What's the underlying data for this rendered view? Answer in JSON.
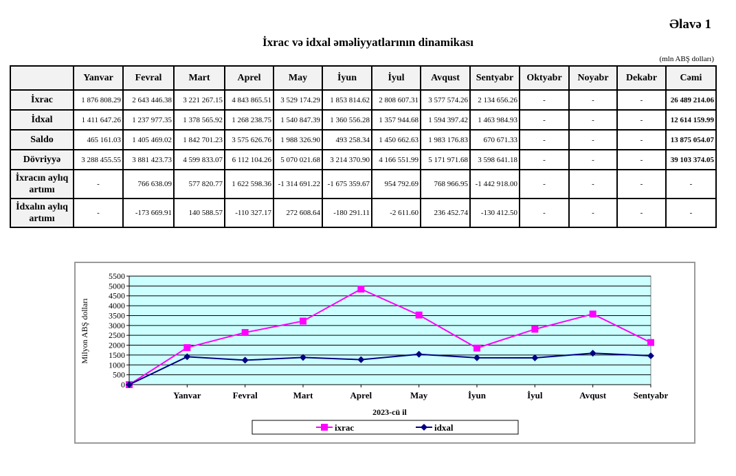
{
  "header": {
    "appendix": "Əlavə 1",
    "title": "İxrac və idxal əməliyyatlarının dinamikası",
    "unit": "(mln ABŞ dolları)"
  },
  "table": {
    "columns": [
      "",
      "Yanvar",
      "Fevral",
      "Mart",
      "Aprel",
      "May",
      "İyun",
      "İyul",
      "Avqust",
      "Sentyabr",
      "Oktyabr",
      "Noyabr",
      "Dekabr",
      "Cəmi"
    ],
    "rows": [
      {
        "label": "İxrac",
        "cells": [
          "1 876 808.29",
          "2 643 446.38",
          "3 221 267.15",
          "4 843 865.51",
          "3 529 174.29",
          "1 853 814.62",
          "2 808 607.31",
          "3 577 574.26",
          "2 134 656.26",
          "-",
          "-",
          "-",
          "26 489 214.06"
        ]
      },
      {
        "label": "İdxal",
        "cells": [
          "1 411 647.26",
          "1 237 977.35",
          "1 378 565.92",
          "1 268 238.75",
          "1 540 847.39",
          "1 360 556.28",
          "1 357 944.68",
          "1 594 397.42",
          "1 463 984.93",
          "-",
          "-",
          "-",
          "12 614 159.99"
        ]
      },
      {
        "label": "Saldo",
        "cells": [
          "465 161.03",
          "1 405 469.02",
          "1 842 701.23",
          "3 575 626.76",
          "1 988 326.90",
          "493 258.34",
          "1 450 662.63",
          "1 983 176.83",
          "670 671.33",
          "-",
          "-",
          "-",
          "13 875 054.07"
        ]
      },
      {
        "label": "Dövriyyə",
        "cells": [
          "3 288 455.55",
          "3 881 423.73",
          "4 599 833.07",
          "6 112 104.26",
          "5 070 021.68",
          "3 214 370.90",
          "4 166 551.99",
          "5 171 971.68",
          "3 598 641.18",
          "-",
          "-",
          "-",
          "39 103 374.05"
        ]
      },
      {
        "label": "İxracın aylıq artımı",
        "cells": [
          "-",
          "766 638.09",
          "577 820.77",
          "1 622 598.36",
          "-1 314 691.22",
          "-1 675 359.67",
          "954 792.69",
          "768 966.95",
          "-1 442 918.00",
          "-",
          "-",
          "-",
          "-"
        ]
      },
      {
        "label": "İdxalın aylıq artımı",
        "cells": [
          "-",
          "-173 669.91",
          "140 588.57",
          "-110 327.17",
          "272 608.64",
          "-180 291.11",
          "-2 611.60",
          "236 452.74",
          "-130 412.50",
          "-",
          "-",
          "-",
          "-"
        ]
      }
    ]
  },
  "chart_data": {
    "type": "line",
    "x": [
      "",
      "Yanvar",
      "Fevral",
      "Mart",
      "Aprel",
      "May",
      "İyun",
      "İyul",
      "Avqust",
      "Sentyabr"
    ],
    "series": [
      {
        "name": "ixrac",
        "color": "#ff00ff",
        "marker": "square",
        "values": [
          0,
          1877,
          2643,
          3221,
          4844,
          3529,
          1854,
          2809,
          3578,
          2135
        ]
      },
      {
        "name": "idxal",
        "color": "#000080",
        "marker": "diamond",
        "values": [
          0,
          1412,
          1238,
          1379,
          1268,
          1541,
          1361,
          1358,
          1594,
          1464
        ]
      }
    ],
    "xlabel": "2023-cü il",
    "ylabel": "Milyon ABŞ dolları",
    "ylim": [
      0,
      5500
    ],
    "yticks": [
      "0",
      "500",
      "1000",
      "1500",
      "2000",
      "2500",
      "3000",
      "3500",
      "4000",
      "4500",
      "5000",
      "5500"
    ],
    "grid": true,
    "legend": "bottom",
    "plot_bg": "#ccffff"
  }
}
